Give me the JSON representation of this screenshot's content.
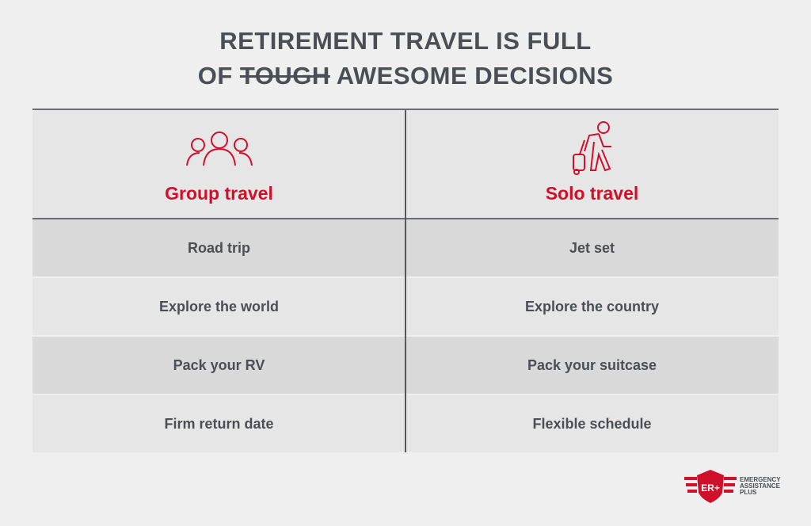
{
  "title": {
    "line1": "Retirement travel is full",
    "line2_prefix": "of",
    "line2_struck": "tough",
    "line2_suffix": "awesome decisions"
  },
  "columns": [
    {
      "label": "Group travel",
      "icon": "group-people-icon"
    },
    {
      "label": "Solo travel",
      "icon": "traveler-with-suitcase-icon"
    }
  ],
  "rows": [
    [
      "Road trip",
      "Jet set"
    ],
    [
      "Explore the world",
      "Explore the country"
    ],
    [
      "Pack your RV",
      "Pack your suitcase"
    ],
    [
      "Firm return date",
      "Flexible schedule"
    ]
  ],
  "logo": {
    "mark": "ER+",
    "line1": "EMERGENCY",
    "line2": "ASSISTANCE",
    "line3": "PLUS"
  },
  "colors": {
    "accent": "#d0102a",
    "text": "#4b4e52",
    "row_dark": "#d9d9d9",
    "row_light": "#e6e6e6",
    "background": "#efefef"
  }
}
